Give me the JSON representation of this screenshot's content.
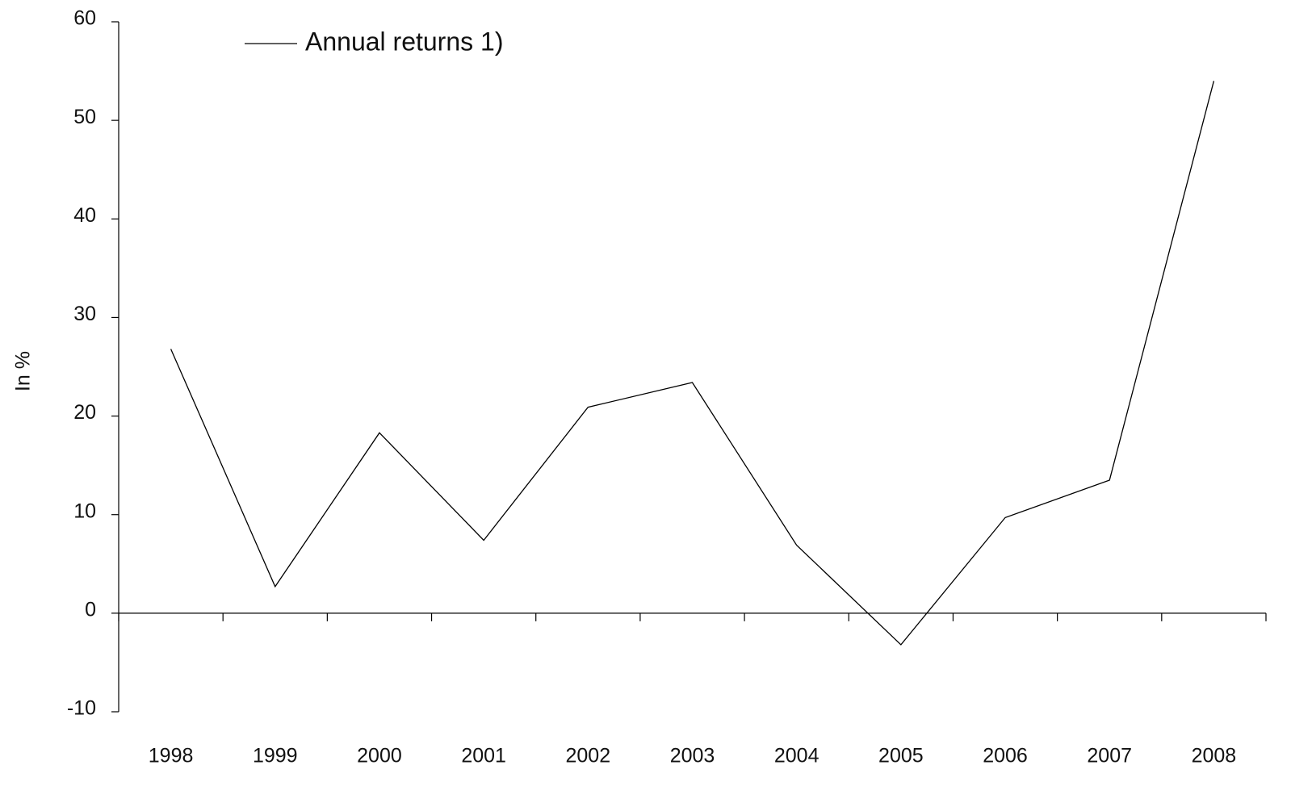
{
  "chart_data": {
    "type": "line",
    "y_label": "In %",
    "categories": [
      "1998",
      "1999",
      "2000",
      "2001",
      "2002",
      "2003",
      "2004",
      "2005",
      "2006",
      "2007",
      "2008"
    ],
    "series": [
      {
        "name": "Annual returns 1)",
        "color": "#000000",
        "values": [
          26.8,
          2.7,
          18.3,
          7.4,
          20.9,
          23.4,
          6.9,
          -3.2,
          9.7,
          13.5,
          54.0
        ]
      }
    ],
    "ylim": [
      -10,
      60
    ],
    "yticks": [
      -10,
      0,
      10,
      20,
      30,
      40,
      50,
      60
    ],
    "legend": "top-left"
  }
}
